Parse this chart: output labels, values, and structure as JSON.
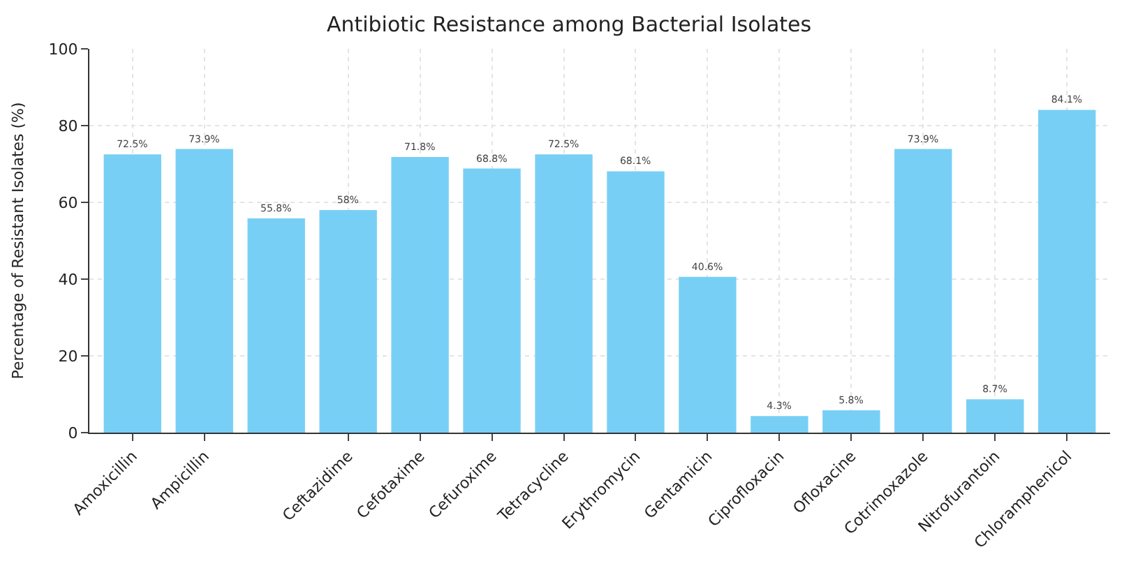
{
  "chart_data": {
    "type": "bar",
    "title": "Antibiotic Resistance among Bacterial Isolates",
    "ylabel": "Percentage of Resistant Isolates (%)",
    "categories": [
      "Amoxicillin",
      "Ampicillin",
      null,
      "Ceftazidime",
      "Cefotaxime",
      "Cefuroxime",
      "Tetracycline",
      "Erythromycin",
      "Gentamicin",
      "Ciprofloxacin",
      "Ofloxacine",
      "Cotrimoxazole",
      "Nitrofurantoin",
      "Chloramphenicol"
    ],
    "values": [
      72.5,
      73.9,
      55.8,
      58,
      71.8,
      68.8,
      72.5,
      68.1,
      40.6,
      4.3,
      5.8,
      73.9,
      8.7,
      84.1
    ],
    "value_labels": [
      "72.5%",
      "73.9%",
      "55.8%",
      "58%",
      "71.8%",
      "68.8%",
      "72.5%",
      "68.1%",
      "40.6%",
      "4.3%",
      "5.8%",
      "73.9%",
      "8.7%",
      "84.1%"
    ],
    "color": "#77cff5",
    "ylim": [
      0,
      100
    ],
    "yticks": [
      0,
      20,
      40,
      60,
      80,
      100
    ],
    "grid": true
  }
}
